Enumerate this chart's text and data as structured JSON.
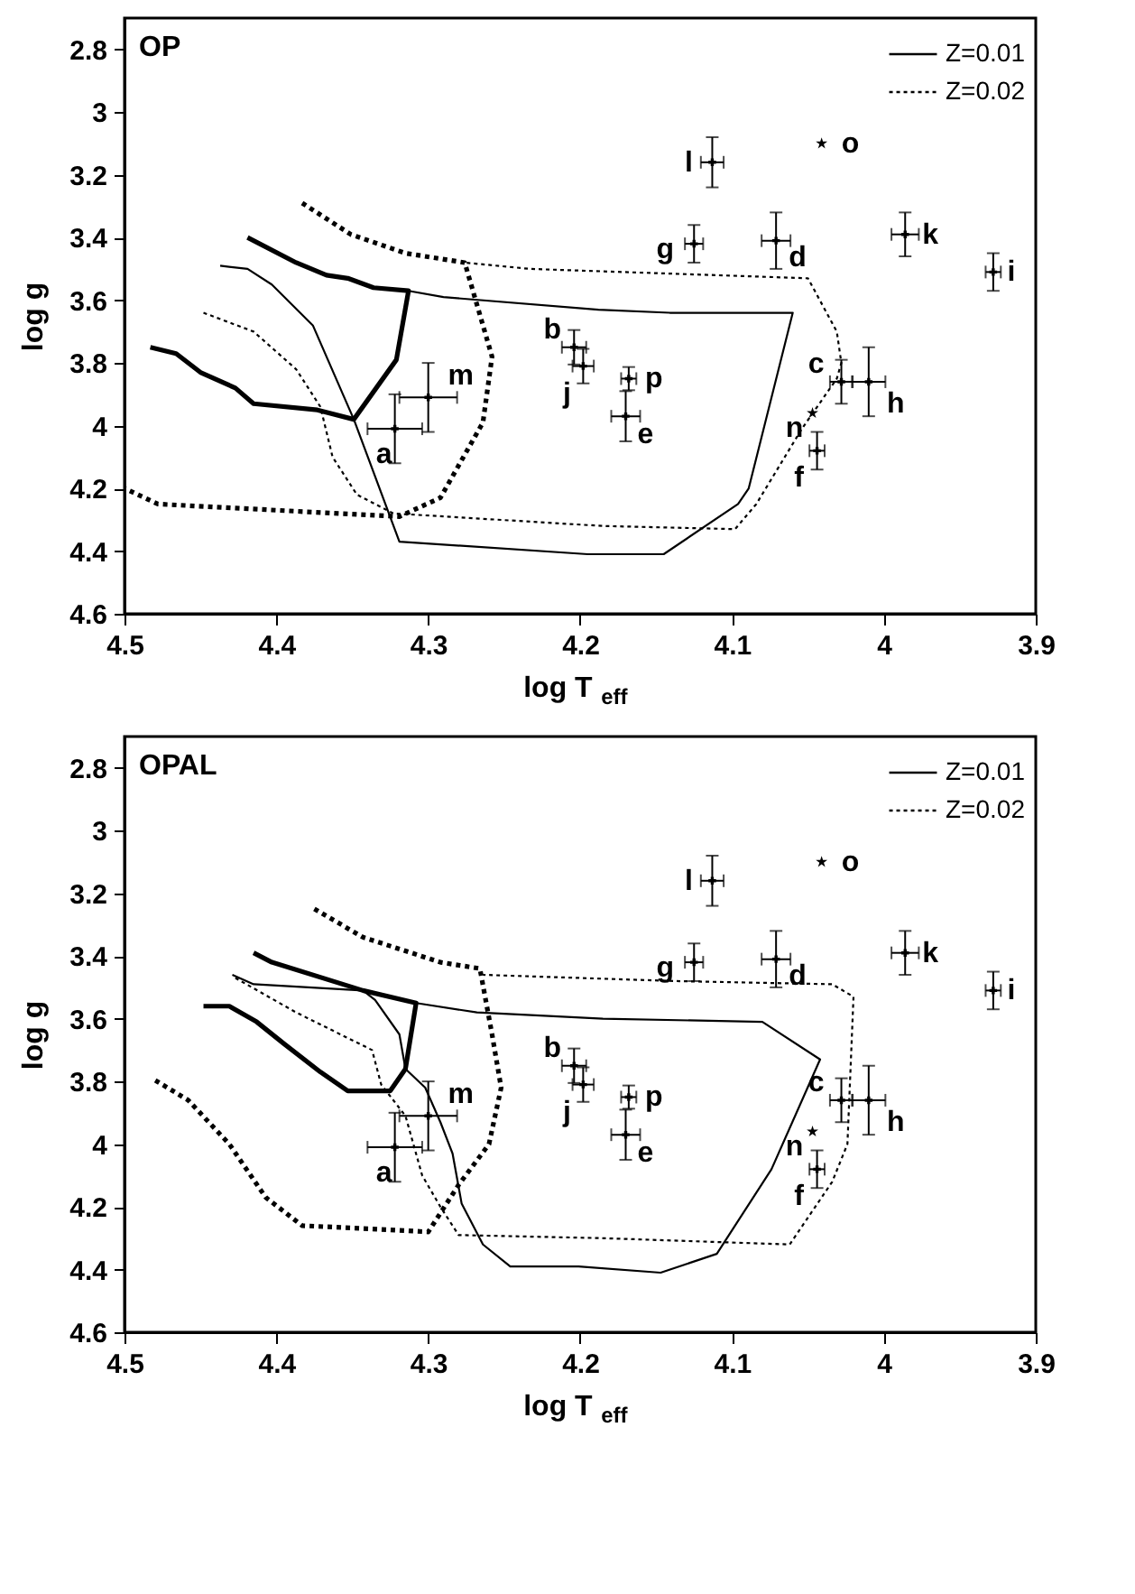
{
  "chart_data": [
    {
      "type": "scatter",
      "xlabel": "log T$_{eff}$",
      "ylabel": "log g",
      "xlim": [
        4.5,
        3.9
      ],
      "ylim": [
        4.6,
        2.7
      ],
      "xticks": [
        4.5,
        4.4,
        4.3,
        4.2,
        4.1,
        4,
        3.9
      ],
      "yticks": [
        2.8,
        3,
        3.2,
        3.4,
        3.6,
        3.8,
        4,
        4.2,
        4.4,
        4.6
      ],
      "legend": "top right",
      "annotations": [
        "OP",
        {
          "text": "a",
          "x": 4.322,
          "y": 4.01
        },
        {
          "text": "b",
          "x": 4.204,
          "y": 3.75
        },
        {
          "text": "c",
          "x": 4.028,
          "y": 3.86
        },
        {
          "text": "d",
          "x": 4.071,
          "y": 3.41
        },
        {
          "text": "e",
          "x": 4.17,
          "y": 3.97
        },
        {
          "text": "f",
          "x": 4.044,
          "y": 4.08
        },
        {
          "text": "g",
          "x": 4.125,
          "y": 3.42
        },
        {
          "text": "h",
          "x": 4.01,
          "y": 3.86
        },
        {
          "text": "i",
          "x": 3.928,
          "y": 3.51
        },
        {
          "text": "j",
          "x": 4.198,
          "y": 3.81
        },
        {
          "text": "k",
          "x": 3.986,
          "y": 3.39
        },
        {
          "text": "l",
          "x": 4.113,
          "y": 3.16
        },
        {
          "text": "m",
          "x": 4.3,
          "y": 3.91
        },
        {
          "text": "n",
          "x": 4.047,
          "y": 3.96
        },
        {
          "text": "o",
          "x": 4.041,
          "y": 3.1
        },
        {
          "text": "p",
          "x": 4.168,
          "y": 3.85
        }
      ],
      "series": [
        {
          "name": "Z=0.01",
          "type": "line",
          "color": "#000000",
          "line_style": "solid",
          "x": [
            4.437,
            4.419,
            4.403,
            4.376,
            4.349,
            4.319,
            4.195,
            4.145,
            4.096,
            4.089,
            4.06,
            4.141,
            4.188,
            4.29,
            4.313
          ],
          "values": [
            3.49,
            3.5,
            3.55,
            3.68,
            3.98,
            4.37,
            4.41,
            4.41,
            4.25,
            4.2,
            3.64,
            3.64,
            3.63,
            3.59,
            3.57
          ]
        },
        {
          "name": "Z=0.02",
          "type": "line",
          "color": "#000000",
          "line_style": "dotted",
          "x": [
            4.448,
            4.415,
            4.387,
            4.371,
            4.363,
            4.347,
            4.323,
            4.185,
            4.098,
            4.084,
            4.054,
            4.031,
            4.028,
            4.031,
            4.05,
            4.233,
            4.276
          ],
          "values": [
            3.64,
            3.7,
            3.82,
            3.94,
            4.1,
            4.22,
            4.28,
            4.32,
            4.33,
            4.25,
            4.01,
            3.85,
            3.8,
            3.7,
            3.53,
            3.5,
            3.48
          ]
        },
        {
          "type": "line",
          "color": "#000000",
          "line_style": "solid",
          "x": [
            4.419,
            4.387,
            4.367,
            4.353,
            4.336,
            4.313,
            4.321,
            4.349,
            4.373,
            4.415,
            4.427,
            4.45,
            4.466,
            4.483
          ],
          "values": [
            3.4,
            3.48,
            3.52,
            3.53,
            3.56,
            3.57,
            3.79,
            3.98,
            3.95,
            3.93,
            3.88,
            3.83,
            3.77,
            3.75
          ]
        },
        {
          "type": "line",
          "color": "#000000",
          "line_style": "dotted",
          "x": [
            4.383,
            4.351,
            4.315,
            4.276,
            4.258,
            4.264,
            4.292,
            4.319,
            4.399,
            4.478,
            4.5
          ],
          "values": [
            3.29,
            3.39,
            3.45,
            3.48,
            3.78,
            3.99,
            4.23,
            4.29,
            4.27,
            4.25,
            4.2
          ]
        },
        {
          "type": "scatter",
          "color": "#000000",
          "marker": "cross",
          "x": [
            4.322,
            4.204,
            4.028,
            4.071,
            4.17,
            4.044,
            4.125,
            4.01,
            3.928,
            4.198,
            3.986,
            4.113,
            4.3,
            4.168
          ],
          "values": [
            4.01,
            3.75,
            3.86,
            3.41,
            3.97,
            4.08,
            3.42,
            3.86,
            3.51,
            3.81,
            3.39,
            3.16,
            3.91,
            3.85
          ],
          "errors": [
            0.11,
            0.055,
            0.07,
            0.09,
            0.08,
            0.06,
            0.06,
            0.11,
            0.06,
            0.055,
            0.07,
            0.08,
            0.11,
            0.037
          ],
          "xerrors": [
            0.018,
            0.008,
            0.0075,
            0.0095,
            0.0095,
            0.005,
            0.006,
            0.011,
            0.005,
            0.007,
            0.009,
            0.0075,
            0.019,
            0.005
          ]
        },
        {
          "type": "scatter",
          "color": "#000000",
          "marker": "star",
          "x": [
            4.047,
            4.041
          ],
          "values": [
            3.96,
            3.1
          ]
        }
      ]
    },
    {
      "type": "scatter",
      "xlabel": "log T$_{eff}$",
      "ylabel": "log g",
      "xlim": [
        4.5,
        3.9
      ],
      "ylim": [
        4.6,
        2.7
      ],
      "xticks": [
        4.5,
        4.4,
        4.3,
        4.2,
        4.1,
        4,
        3.9
      ],
      "yticks": [
        2.8,
        3,
        3.2,
        3.4,
        3.6,
        3.8,
        4,
        4.2,
        4.4,
        4.6
      ],
      "legend": "top right",
      "annotations": [
        "OPAL",
        {
          "text": "a",
          "x": 4.322,
          "y": 4.01
        },
        {
          "text": "b",
          "x": 4.204,
          "y": 3.75
        },
        {
          "text": "c",
          "x": 4.028,
          "y": 3.86
        },
        {
          "text": "d",
          "x": 4.071,
          "y": 3.41
        },
        {
          "text": "e",
          "x": 4.17,
          "y": 3.97
        },
        {
          "text": "f",
          "x": 4.044,
          "y": 4.08
        },
        {
          "text": "g",
          "x": 4.125,
          "y": 3.42
        },
        {
          "text": "h",
          "x": 4.01,
          "y": 3.86
        },
        {
          "text": "i",
          "x": 3.928,
          "y": 3.51
        },
        {
          "text": "j",
          "x": 4.198,
          "y": 3.81
        },
        {
          "text": "k",
          "x": 3.986,
          "y": 3.39
        },
        {
          "text": "l",
          "x": 4.113,
          "y": 3.16
        },
        {
          "text": "m",
          "x": 4.3,
          "y": 3.91
        },
        {
          "text": "n",
          "x": 4.047,
          "y": 3.96
        },
        {
          "text": "o",
          "x": 4.041,
          "y": 3.1
        },
        {
          "text": "p",
          "x": 4.168,
          "y": 3.85
        }
      ],
      "series": [
        {
          "name": "Z=0.01",
          "type": "line",
          "color": "#000000",
          "line_style": "solid",
          "x": [
            4.429,
            4.415,
            4.343,
            4.335,
            4.319,
            4.315,
            4.302,
            4.292,
            4.284,
            4.278,
            4.264,
            4.246,
            4.201,
            4.147,
            4.11,
            4.074,
            4.042,
            4.08,
            4.185,
            4.268,
            4.308,
            4.343
          ],
          "values": [
            3.46,
            3.49,
            3.51,
            3.54,
            3.65,
            3.76,
            3.82,
            3.93,
            4.03,
            4.19,
            4.32,
            4.39,
            4.39,
            4.41,
            4.35,
            4.08,
            3.73,
            3.61,
            3.6,
            3.58,
            3.55,
            3.51
          ]
        },
        {
          "name": "Z=0.02",
          "type": "line",
          "color": "#000000",
          "line_style": "dotted",
          "x": [
            4.427,
            4.387,
            4.337,
            4.331,
            4.315,
            4.304,
            4.292,
            4.28,
            4.185,
            4.062,
            4.034,
            4.024,
            4.02,
            4.034,
            4.137,
            4.264
          ],
          "values": [
            3.47,
            3.58,
            3.7,
            3.81,
            3.91,
            4.1,
            4.2,
            4.29,
            4.3,
            4.32,
            4.12,
            4.0,
            3.53,
            3.49,
            3.48,
            3.46
          ]
        },
        {
          "type": "line",
          "color": "#000000",
          "line_style": "solid",
          "x": [
            4.415,
            4.403,
            4.343,
            4.308,
            4.315,
            4.325,
            4.353,
            4.371,
            4.395,
            4.413,
            4.431,
            4.448
          ],
          "values": [
            3.39,
            3.42,
            3.51,
            3.55,
            3.76,
            3.83,
            3.83,
            3.77,
            3.68,
            3.61,
            3.56,
            3.56
          ]
        },
        {
          "type": "line",
          "color": "#000000",
          "line_style": "dotted",
          "x": [
            4.375,
            4.343,
            4.292,
            4.266,
            4.258,
            4.252,
            4.26,
            4.28,
            4.3,
            4.339,
            4.383,
            4.407,
            4.431,
            4.458,
            4.482
          ],
          "values": [
            3.25,
            3.34,
            3.42,
            3.44,
            3.65,
            3.82,
            4.0,
            4.13,
            4.28,
            4.27,
            4.26,
            4.17,
            4.0,
            3.86,
            3.79
          ]
        },
        {
          "type": "scatter",
          "color": "#000000",
          "marker": "cross",
          "x": [
            4.322,
            4.204,
            4.028,
            4.071,
            4.17,
            4.044,
            4.125,
            4.01,
            3.928,
            4.198,
            3.986,
            4.113,
            4.3,
            4.168
          ],
          "values": [
            4.01,
            3.75,
            3.86,
            3.41,
            3.97,
            4.08,
            3.42,
            3.86,
            3.51,
            3.81,
            3.39,
            3.16,
            3.91,
            3.85
          ],
          "errors": [
            0.11,
            0.055,
            0.07,
            0.09,
            0.08,
            0.06,
            0.06,
            0.11,
            0.06,
            0.055,
            0.07,
            0.08,
            0.11,
            0.037
          ],
          "xerrors": [
            0.018,
            0.008,
            0.0075,
            0.0095,
            0.0095,
            0.005,
            0.006,
            0.011,
            0.005,
            0.007,
            0.009,
            0.0075,
            0.019,
            0.005
          ]
        },
        {
          "type": "scatter",
          "color": "#000000",
          "marker": "star",
          "x": [
            4.047,
            4.041
          ],
          "values": [
            3.96,
            3.1
          ]
        }
      ]
    }
  ]
}
